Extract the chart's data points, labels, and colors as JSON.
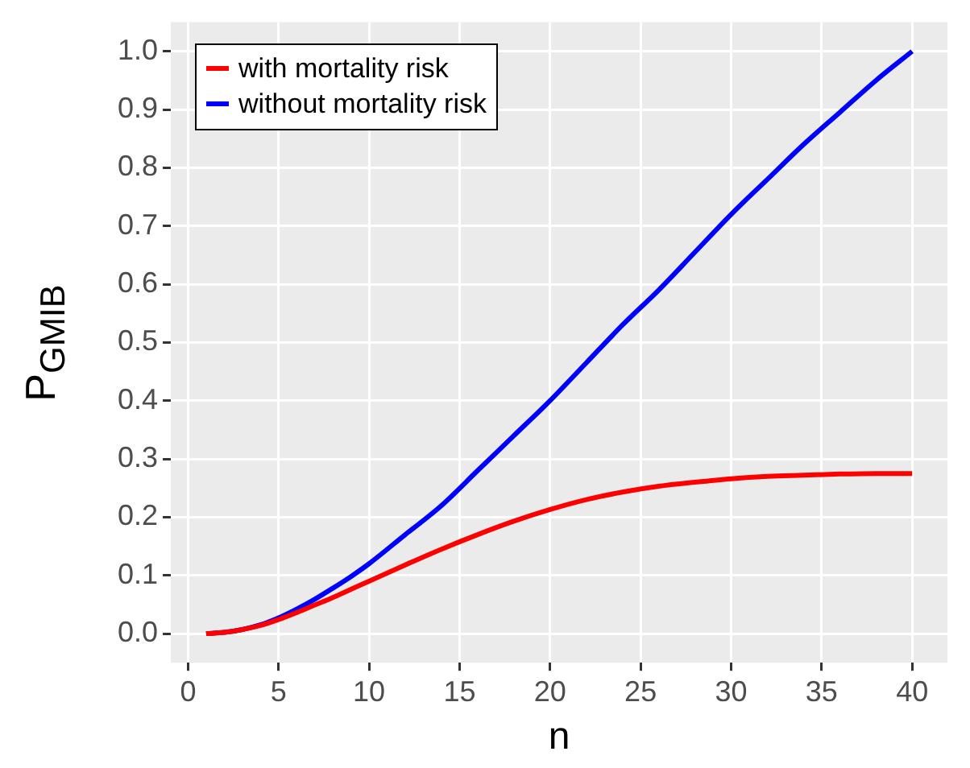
{
  "chart_data": {
    "type": "line",
    "xlabel": "n",
    "ylabel": "P$_{GMIB}$",
    "legend": "top left",
    "grid": true,
    "marker": "none",
    "line_style": "solid",
    "xlim": [
      -0.95,
      41.95
    ],
    "xticks": [
      0,
      5,
      10,
      15,
      20,
      25,
      30,
      35,
      40
    ],
    "ylim": [
      -0.05,
      1.05
    ],
    "yticks": [
      {
        "value": 0,
        "label": "0.0"
      },
      {
        "value": 0.1,
        "label": "0.1"
      },
      {
        "value": 0.2,
        "label": "0.2"
      },
      {
        "value": 0.3,
        "label": "0.3"
      },
      {
        "value": 0.4,
        "label": "0.4"
      },
      {
        "value": 0.5,
        "label": "0.5"
      },
      {
        "value": 0.6,
        "label": "0.6"
      },
      {
        "value": 0.7,
        "label": "0.7"
      },
      {
        "value": 0.8,
        "label": "0.8"
      },
      {
        "value": 0.9,
        "label": "0.9"
      },
      {
        "value": 1,
        "label": "1.0"
      }
    ],
    "series": [
      {
        "name": "with mortality risk",
        "color": "#ff0000",
        "x": [
          1,
          2,
          3,
          4,
          5,
          6,
          7,
          8,
          9,
          10,
          12,
          14,
          16,
          18,
          20,
          22,
          24,
          26,
          28,
          30,
          32,
          34,
          36,
          38,
          40
        ],
        "values": [
          0,
          0.002,
          0.007,
          0.014,
          0.024,
          0.036,
          0.049,
          0.062,
          0.076,
          0.09,
          0.118,
          0.145,
          0.17,
          0.193,
          0.213,
          0.23,
          0.243,
          0.253,
          0.26,
          0.266,
          0.27,
          0.272,
          0.274,
          0.275,
          0.275
        ]
      },
      {
        "name": "without mortality risk",
        "color": "#0000ff",
        "x": [
          1,
          2,
          3,
          4,
          5,
          6,
          7,
          8,
          9,
          10,
          12,
          14,
          16,
          18,
          20,
          22,
          24,
          26,
          28,
          30,
          32,
          34,
          36,
          38,
          40
        ],
        "values": [
          0,
          0.002,
          0.007,
          0.015,
          0.027,
          0.042,
          0.059,
          0.078,
          0.098,
          0.12,
          0.17,
          0.22,
          0.28,
          0.34,
          0.4,
          0.465,
          0.53,
          0.59,
          0.655,
          0.72,
          0.78,
          0.84,
          0.895,
          0.95,
          1.0
        ]
      }
    ]
  }
}
